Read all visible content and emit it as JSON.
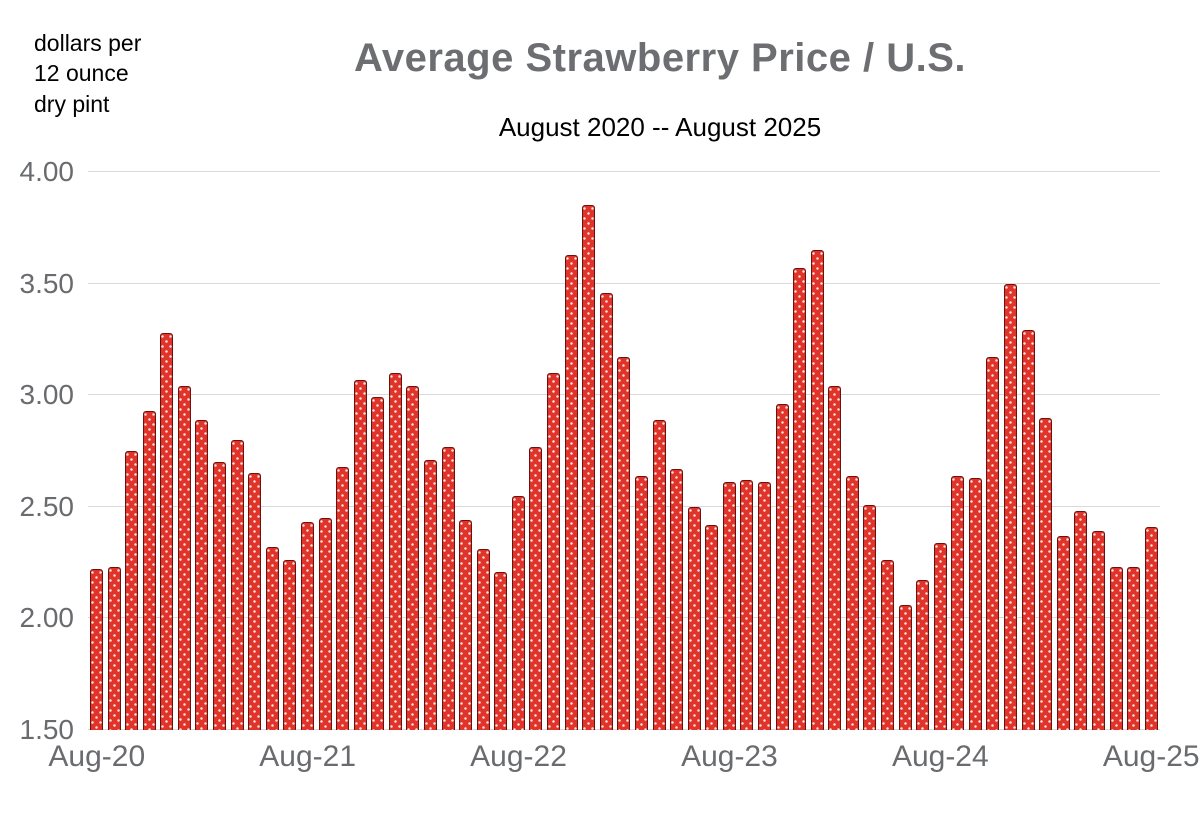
{
  "header": {
    "unit_label_lines": [
      "dollars per",
      "12 ounce",
      "dry pint"
    ],
    "title": "Average Strawberry Price / U.S.",
    "subtitle": "August 2020 -- August 2025"
  },
  "chart_data": {
    "type": "bar",
    "title": "Average Strawberry Price / U.S.",
    "subtitle": "August 2020 -- August 2025",
    "xlabel": "",
    "ylabel": "dollars per 12 ounce dry pint",
    "ylim": [
      1.5,
      4.0
    ],
    "yticks": [
      1.5,
      2.0,
      2.5,
      3.0,
      3.5,
      4.0
    ],
    "ytick_labels": [
      "1.50",
      "2.00",
      "2.50",
      "3.00",
      "3.50",
      "4.00"
    ],
    "xtick_labels": [
      "Aug-20",
      "Aug-21",
      "Aug-22",
      "Aug-23",
      "Aug-24",
      "Aug-25"
    ],
    "xtick_indices": [
      0,
      12,
      24,
      36,
      48,
      60
    ],
    "grid": true,
    "legend": false,
    "bar_color": "#e0342b",
    "bar_border_color": "#6e100b",
    "categories": [
      "Aug-20",
      "Sep-20",
      "Oct-20",
      "Nov-20",
      "Dec-20",
      "Jan-21",
      "Feb-21",
      "Mar-21",
      "Apr-21",
      "May-21",
      "Jun-21",
      "Jul-21",
      "Aug-21",
      "Sep-21",
      "Oct-21",
      "Nov-21",
      "Dec-21",
      "Jan-22",
      "Feb-22",
      "Mar-22",
      "Apr-22",
      "May-22",
      "Jun-22",
      "Jul-22",
      "Aug-22",
      "Sep-22",
      "Oct-22",
      "Nov-22",
      "Dec-22",
      "Jan-23",
      "Feb-23",
      "Mar-23",
      "Apr-23",
      "May-23",
      "Jun-23",
      "Jul-23",
      "Aug-23",
      "Sep-23",
      "Oct-23",
      "Nov-23",
      "Dec-23",
      "Jan-24",
      "Feb-24",
      "Mar-24",
      "Apr-24",
      "May-24",
      "Jun-24",
      "Jul-24",
      "Aug-24",
      "Sep-24",
      "Oct-24",
      "Nov-24",
      "Dec-24",
      "Jan-25",
      "Feb-25",
      "Mar-25",
      "Apr-25",
      "May-25",
      "Jun-25",
      "Jul-25",
      "Aug-25"
    ],
    "values": [
      2.22,
      2.23,
      2.75,
      2.93,
      3.28,
      3.04,
      2.89,
      2.7,
      2.8,
      2.65,
      2.32,
      2.26,
      2.43,
      2.45,
      2.68,
      3.07,
      2.99,
      3.1,
      3.04,
      2.71,
      2.77,
      2.44,
      2.31,
      2.21,
      2.55,
      2.77,
      3.1,
      3.63,
      3.85,
      3.46,
      3.17,
      2.64,
      2.89,
      2.67,
      2.5,
      2.42,
      2.61,
      2.62,
      2.61,
      2.96,
      3.57,
      3.65,
      3.04,
      2.64,
      2.51,
      2.26,
      2.06,
      2.17,
      2.34,
      2.64,
      2.63,
      3.17,
      3.5,
      3.29,
      2.9,
      2.37,
      2.48,
      2.39,
      2.23,
      2.23,
      2.41
    ]
  }
}
